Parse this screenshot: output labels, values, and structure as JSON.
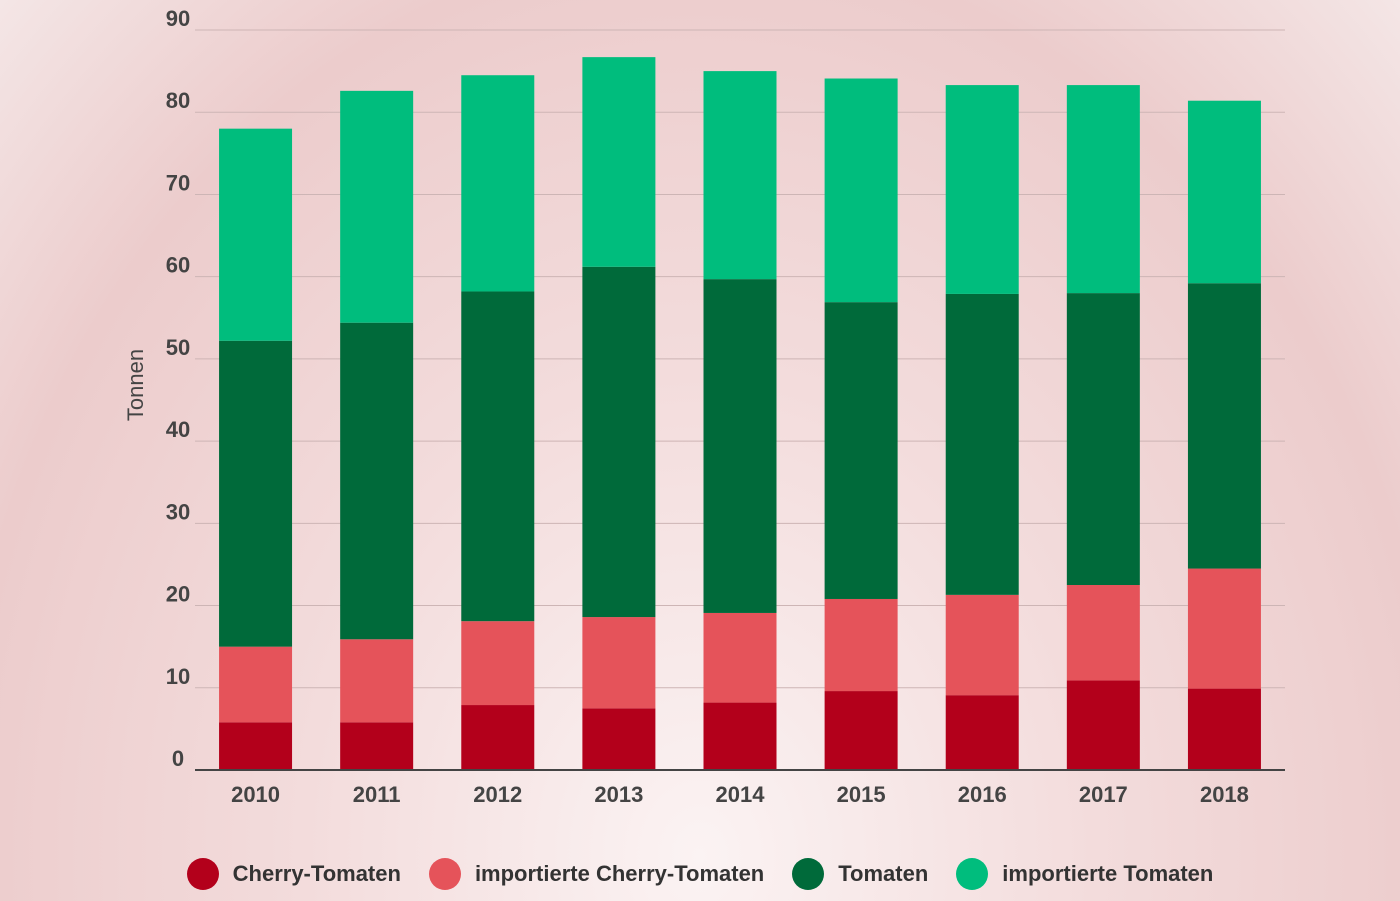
{
  "chart_data": {
    "type": "bar",
    "stacked": true,
    "title": "",
    "xlabel": "",
    "ylabel": "Tonnen",
    "ylim": [
      0,
      90
    ],
    "yticks": [
      0,
      10,
      20,
      30,
      40,
      50,
      60,
      70,
      80,
      90
    ],
    "grid": true,
    "legend_position": "bottom",
    "categories": [
      "2010",
      "2011",
      "2012",
      "2013",
      "2014",
      "2015",
      "2016",
      "2017",
      "2018"
    ],
    "series": [
      {
        "name": "Cherry-Tomaten",
        "color": "#b3001b",
        "values": [
          5.8,
          5.8,
          7.9,
          7.5,
          8.2,
          9.6,
          9.1,
          10.9,
          9.9
        ]
      },
      {
        "name": "importierte Cherry-Tomaten",
        "color": "#e5535a",
        "values": [
          9.2,
          10.1,
          10.2,
          11.1,
          10.9,
          11.2,
          12.2,
          11.6,
          14.6
        ]
      },
      {
        "name": "Tomaten",
        "color": "#006a3a",
        "values": [
          37.2,
          38.5,
          40.1,
          42.6,
          40.6,
          36.1,
          36.6,
          35.5,
          34.7
        ]
      },
      {
        "name": "importierte Tomaten",
        "color": "#00bd7d",
        "values": [
          25.8,
          28.2,
          26.3,
          25.5,
          25.3,
          27.2,
          25.4,
          25.3,
          22.2
        ]
      }
    ]
  }
}
